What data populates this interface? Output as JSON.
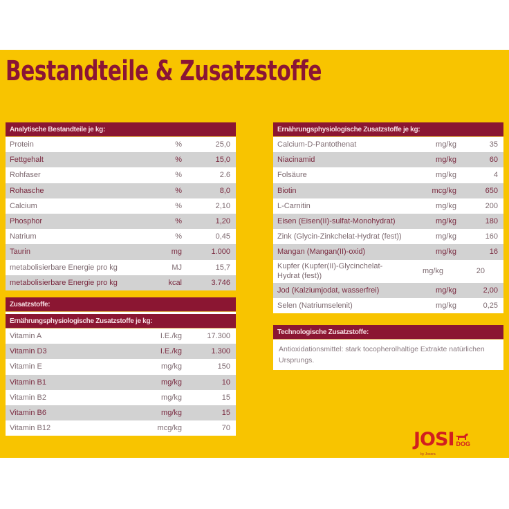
{
  "title": "Bestandteile & Zusatzstoffe",
  "analytic": {
    "header": "Analytische Bestandteile je kg:",
    "rows": [
      [
        "Protein",
        "%",
        "25,0"
      ],
      [
        "Fettgehalt",
        "%",
        "15,0"
      ],
      [
        "Rohfaser",
        "%",
        "2.6"
      ],
      [
        "Rohasche",
        "%",
        "8,0"
      ],
      [
        "Calcium",
        "%",
        "2,10"
      ],
      [
        "Phosphor",
        "%",
        "1,20"
      ],
      [
        "Natrium",
        "%",
        "0,45"
      ],
      [
        "Taurin",
        "mg",
        "1.000"
      ],
      [
        "metabolisierbare Energie pro kg",
        "MJ",
        "15,7"
      ],
      [
        "metabolisierbare Energie pro kg",
        "kcal",
        "3.746"
      ]
    ]
  },
  "additives": {
    "header": "Zusatzstoffe:",
    "subheader": "Ernährungsphysiologische Zusatzstoffe je kg:",
    "rows": [
      [
        "Vitamin A",
        "I.E./kg",
        "17.300"
      ],
      [
        "Vitamin D3",
        "I.E./kg",
        "1.300"
      ],
      [
        "Vitamin E",
        "mg/kg",
        "150"
      ],
      [
        "Vitamin B1",
        "mg/kg",
        "10"
      ],
      [
        "Vitamin B2",
        "mg/kg",
        "15"
      ],
      [
        "Vitamin B6",
        "mg/kg",
        "15"
      ],
      [
        "Vitamin B12",
        "mcg/kg",
        "70"
      ]
    ]
  },
  "nutritional": {
    "header": "Ernährungsphysiologische Zusatzstoffe je kg:",
    "rows": [
      [
        "Calcium-D-Pantothenat",
        "mg/kg",
        "35"
      ],
      [
        "Niacinamid",
        "mg/kg",
        "60"
      ],
      [
        "Folsäure",
        "mg/kg",
        "4"
      ],
      [
        "Biotin",
        "mcg/kg",
        "650"
      ],
      [
        "L-Carnitin",
        "mg/kg",
        "200"
      ],
      [
        "Eisen (Eisen(II)-sulfat-Monohydrat)",
        "mg/kg",
        "180"
      ],
      [
        "Zink (Glycin-Zinkchelat-Hydrat (fest))",
        "mg/kg",
        "160"
      ],
      [
        "Mangan (Mangan(II)-oxid)",
        "mg/kg",
        "16"
      ],
      [
        "Kupfer (Kupfer(II)-Glycinchelat-Hydrat (fest))",
        "mg/kg",
        "20"
      ],
      [
        "Jod (Kalziumjodat, wasserfrei)",
        "mg/kg",
        "2,00"
      ],
      [
        "Selen (Natriumselenit)",
        "mg/kg",
        "0,25"
      ]
    ]
  },
  "technological": {
    "header": "Technologische Zusatzstoffe:",
    "text": "Antioxidationsmittel: stark tocopherolhaltige Extrakte natürlichen Ursprungs."
  },
  "logo": {
    "brand": "JOSI",
    "sub": "DOG",
    "by": "by Josera"
  },
  "colors": {
    "background": "#f8c400",
    "accent": "#8b1632"
  }
}
